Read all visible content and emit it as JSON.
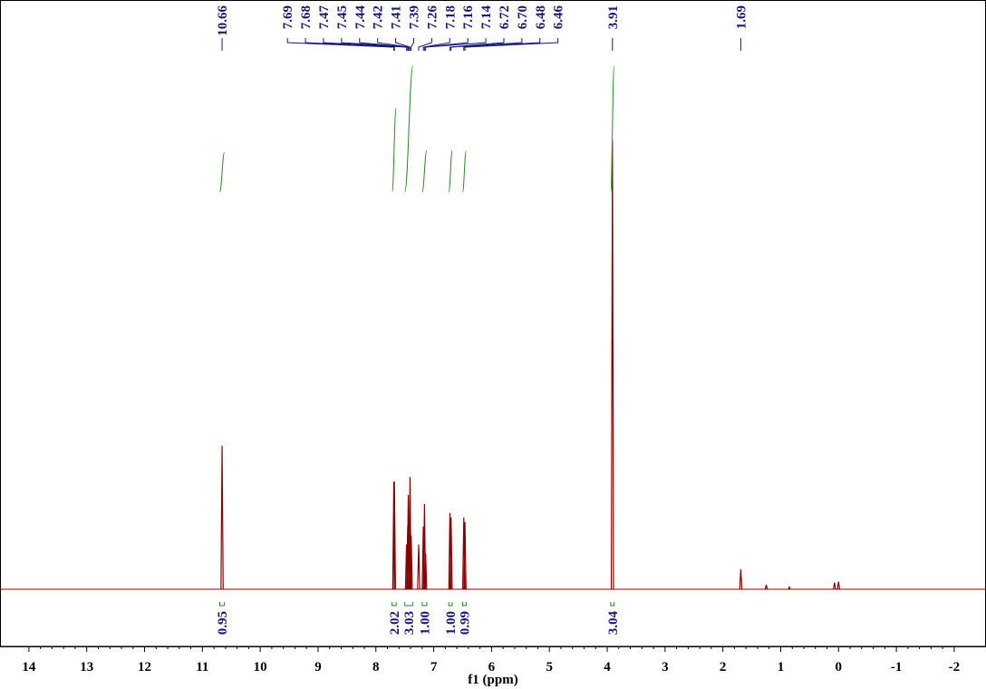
{
  "chart_data": {
    "type": "nmr",
    "xlabel": "f1 (ppm)",
    "xlim": [
      14.5,
      -2.55
    ],
    "xticks": [
      14,
      13,
      12,
      11,
      10,
      9,
      8,
      7,
      6,
      5,
      4,
      3,
      2,
      1,
      0,
      -1,
      -2
    ],
    "ylim": [
      0,
      100
    ],
    "color": "#8b0000",
    "label_color": "#191970",
    "integral_color": "#228b22",
    "peaks": {
      "x": [
        10.66,
        7.69,
        7.68,
        7.47,
        7.45,
        7.44,
        7.42,
        7.41,
        7.39,
        7.26,
        7.18,
        7.16,
        7.14,
        6.72,
        6.7,
        6.48,
        6.46,
        3.91,
        1.69,
        1.25,
        0.85,
        0.07,
        0.0
      ],
      "values": [
        32,
        24,
        24,
        10,
        14,
        21,
        15,
        25,
        12,
        10,
        14,
        19,
        8,
        17,
        16,
        16,
        15,
        100,
        4.5,
        1,
        0.5,
        1.5,
        1.7
      ]
    },
    "peak_labels": [
      10.66,
      7.69,
      7.68,
      7.47,
      7.45,
      7.44,
      7.42,
      7.41,
      7.39,
      7.26,
      7.18,
      7.16,
      7.14,
      6.72,
      {
        "value": 6.7,
        "label": "6.70"
      },
      6.48,
      6.46,
      3.91,
      1.69
    ],
    "integrals": [
      {
        "value": 0.95,
        "label": "0.95",
        "from": 10.7,
        "to": 10.62
      },
      {
        "value": 2.02,
        "label": "2.02",
        "from": 7.72,
        "to": 7.65
      },
      {
        "value": 3.03,
        "label": "3.03",
        "from": 7.5,
        "to": 7.36
      },
      {
        "value": 1,
        "label": "1.00",
        "from": 7.2,
        "to": 7.12
      },
      {
        "value": 1,
        "label": "1.00",
        "from": 6.74,
        "to": 6.68
      },
      {
        "value": 0.99,
        "label": "0.99",
        "from": 6.5,
        "to": 6.44
      },
      {
        "value": 3.04,
        "label": "3.04",
        "from": 3.94,
        "to": 3.88
      }
    ]
  }
}
